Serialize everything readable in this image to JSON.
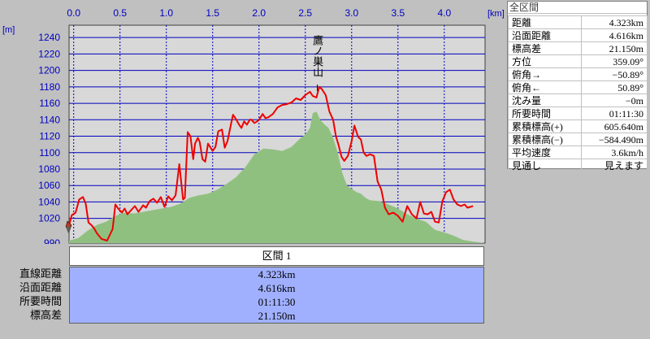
{
  "chart_data": {
    "type": "area",
    "x_unit": "[km]",
    "y_unit": "[m]",
    "x_ticks": [
      "0.0",
      "0.5",
      "1.0",
      "1.5",
      "2.0",
      "2.5",
      "3.0",
      "3.5",
      "4.0"
    ],
    "y_ticks": [
      "1240",
      "1220",
      "1200",
      "1180",
      "1160",
      "1140",
      "1120",
      "1100",
      "1080",
      "1060",
      "1040",
      "1020",
      "990"
    ],
    "xlim": [
      -0.05,
      4.44
    ],
    "ylim": [
      990,
      1255
    ],
    "grid": true,
    "annotation": "鷹ノ巣山",
    "annotation_x": 2.63,
    "series": [
      {
        "color": "#ee0000",
        "x": [
          -0.05,
          -0.02,
          0.02,
          0.06,
          0.1,
          0.13,
          0.16,
          0.19,
          0.22,
          0.25,
          0.3,
          0.36,
          0.42,
          0.45,
          0.48,
          0.52,
          0.55,
          0.58,
          0.62,
          0.66,
          0.7,
          0.75,
          0.78,
          0.82,
          0.86,
          0.9,
          0.94,
          0.98,
          1.02,
          1.06,
          1.1,
          1.14,
          1.18,
          1.2,
          1.23,
          1.26,
          1.29,
          1.31,
          1.34,
          1.36,
          1.39,
          1.42,
          1.45,
          1.5,
          1.53,
          1.56,
          1.6,
          1.63,
          1.66,
          1.7,
          1.72,
          1.75,
          1.78,
          1.81,
          1.84,
          1.87,
          1.9,
          1.92,
          1.95,
          1.98,
          2.0,
          2.04,
          2.07,
          2.1,
          2.15,
          2.2,
          2.25,
          2.3,
          2.35,
          2.4,
          2.45,
          2.5,
          2.55,
          2.58,
          2.62,
          2.65,
          2.68,
          2.72,
          2.76,
          2.8,
          2.83,
          2.86,
          2.89,
          2.92,
          2.96,
          3.0,
          3.03,
          3.07,
          3.1,
          3.13,
          3.16,
          3.2,
          3.24,
          3.28,
          3.32,
          3.36,
          3.4,
          3.45,
          3.5,
          3.55,
          3.6,
          3.65,
          3.7,
          3.74,
          3.78,
          3.82,
          3.86,
          3.9,
          3.94,
          3.98,
          4.02,
          4.06,
          4.1,
          4.14,
          4.18,
          4.22,
          4.25,
          4.28,
          4.31
        ],
        "values": [
          1012,
          1024,
          1027,
          1043,
          1046,
          1038,
          1015,
          1012,
          1008,
          1002,
          995,
          993,
          1007,
          1037,
          1032,
          1027,
          1032,
          1025,
          1030,
          1035,
          1028,
          1036,
          1033,
          1041,
          1044,
          1039,
          1046,
          1034,
          1047,
          1042,
          1048,
          1086,
          1043,
          1045,
          1125,
          1120,
          1092,
          1111,
          1118,
          1113,
          1092,
          1089,
          1111,
          1102,
          1107,
          1126,
          1128,
          1106,
          1114,
          1136,
          1146,
          1141,
          1135,
          1130,
          1138,
          1134,
          1140,
          1140,
          1136,
          1138,
          1140,
          1147,
          1142,
          1143,
          1147,
          1155,
          1158,
          1159,
          1161,
          1166,
          1164,
          1170,
          1174,
          1169,
          1167,
          1180,
          1177,
          1170,
          1150,
          1140,
          1120,
          1109,
          1095,
          1090,
          1096,
          1114,
          1133,
          1119,
          1116,
          1100,
          1096,
          1098,
          1096,
          1065,
          1055,
          1033,
          1025,
          1027,
          1023,
          1016,
          1035,
          1025,
          1020,
          1040,
          1026,
          1025,
          1028,
          1016,
          1015,
          1041,
          1052,
          1055,
          1043,
          1037,
          1035,
          1037,
          1033,
          1034,
          1035
        ]
      },
      {
        "color": "#90c080",
        "fill": true,
        "x": [
          -0.05,
          0.05,
          0.15,
          0.25,
          0.35,
          0.45,
          0.55,
          0.65,
          0.75,
          0.85,
          0.95,
          1.05,
          1.15,
          1.25,
          1.35,
          1.45,
          1.55,
          1.65,
          1.75,
          1.85,
          1.95,
          2.05,
          2.15,
          2.25,
          2.35,
          2.45,
          2.5,
          2.55,
          2.58,
          2.62,
          2.66,
          2.7,
          2.75,
          2.8,
          2.85,
          2.9,
          2.95,
          3.0,
          3.05,
          3.1,
          3.15,
          3.2,
          3.3,
          3.4,
          3.5,
          3.6,
          3.7,
          3.8,
          3.9,
          4.0,
          4.1,
          4.2,
          4.3,
          4.44
        ],
        "values": [
          993,
          996,
          1005,
          1012,
          1016,
          1023,
          1027,
          1026,
          1028,
          1030,
          1032,
          1034,
          1038,
          1045,
          1048,
          1050,
          1055,
          1062,
          1070,
          1082,
          1098,
          1105,
          1104,
          1102,
          1107,
          1118,
          1122,
          1130,
          1148,
          1150,
          1140,
          1135,
          1130,
          1118,
          1100,
          1075,
          1060,
          1056,
          1052,
          1050,
          1045,
          1042,
          1041,
          1037,
          1032,
          1025,
          1020,
          1016,
          1006,
          1003,
          999,
          994,
          992,
          990
        ]
      }
    ]
  },
  "info_panel": {
    "title": "全区間",
    "rows": [
      {
        "label": "距離",
        "value": "4.323km"
      },
      {
        "label": "沿面距離",
        "value": "4.616km"
      },
      {
        "label": "標高差",
        "value": "21.150m"
      },
      {
        "label": "方位",
        "value": "359.09°"
      },
      {
        "label": "俯角→",
        "value": "−50.89°"
      },
      {
        "label": "俯角←",
        "value": "50.89°"
      },
      {
        "label": "沈み量",
        "value": "−0m"
      },
      {
        "label": "所要時間",
        "value": "01:11:30"
      },
      {
        "label": "累積標高(+)",
        "value": "605.640m"
      },
      {
        "label": "累積標高(−)",
        "value": "−584.490m"
      },
      {
        "label": "平均速度",
        "value": "3.6km/h"
      },
      {
        "label": "見通し",
        "value": "見えます"
      }
    ]
  },
  "section": {
    "title": "区間 1",
    "rows": [
      {
        "label": "直線距離",
        "value": "4.323km"
      },
      {
        "label": "沿面距離",
        "value": "4.616km"
      },
      {
        "label": "所要時間",
        "value": "01:11:30"
      },
      {
        "label": "標高差",
        "value": "21.150m"
      }
    ]
  },
  "colors": {
    "plot_bg": "#d8d8d8",
    "grid": "#0000c0",
    "profile": "#ee0000",
    "terrain": "#90c080",
    "summary_bg": "#a0b0ff"
  }
}
